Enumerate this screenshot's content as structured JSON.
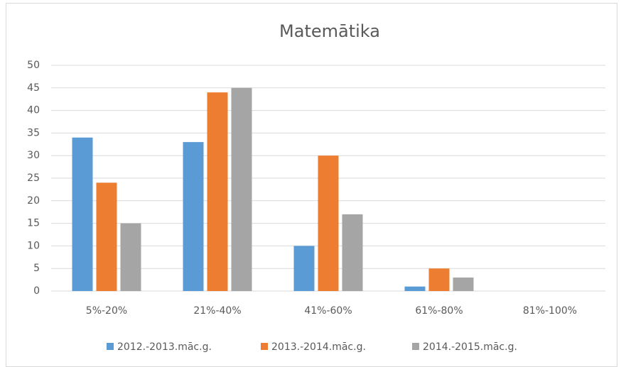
{
  "chart_data": {
    "type": "bar",
    "title": "Matemātika",
    "categories": [
      "5%-20%",
      "21%-40%",
      "41%-60%",
      "61%-80%",
      "81%-100%"
    ],
    "series": [
      {
        "name": "2012.-2013.māc.g.",
        "color": "#5b9bd5",
        "values": [
          34,
          33,
          10,
          1,
          0
        ]
      },
      {
        "name": "2013.-2014.māc.g.",
        "color": "#ed7d31",
        "values": [
          24,
          44,
          30,
          5,
          0
        ]
      },
      {
        "name": "2014.-2015.māc.g.",
        "color": "#a5a5a5",
        "values": [
          15,
          45,
          17,
          3,
          0
        ]
      }
    ],
    "ylim": [
      0,
      50
    ],
    "yticks": [
      0,
      5,
      10,
      15,
      20,
      25,
      30,
      35,
      40,
      45,
      50
    ],
    "grid": true,
    "legend": "bottom"
  }
}
